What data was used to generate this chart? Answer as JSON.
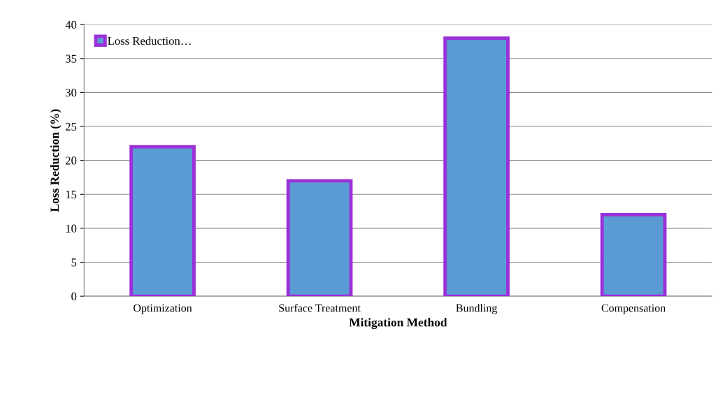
{
  "chart_data": {
    "type": "bar",
    "xlabel": "Mitigation Method",
    "ylabel": "Loss Reduction (%)",
    "categories": [
      "Optimization",
      "Surface Treatment",
      "Bundling",
      "Compensation"
    ],
    "series": [
      {
        "name": "Loss Reduction…",
        "color": "#5b9bd5",
        "values": [
          22,
          17,
          38,
          12
        ]
      }
    ],
    "ylim": [
      0,
      40
    ],
    "yticks": [
      0,
      5,
      10,
      15,
      20,
      25,
      30,
      35,
      40
    ],
    "grid": "y",
    "legend": "top left"
  }
}
